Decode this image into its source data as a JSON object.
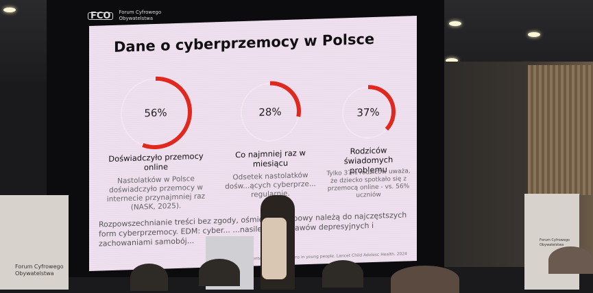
{
  "logo": {
    "name_line1": "Forum Cyfrowego",
    "name_line2": "Obywatelstwa",
    "mark": "FCO"
  },
  "slide": {
    "title": "Dane o cyberprzemocy w Polsce",
    "accent_color": "#e0281e",
    "stats": [
      {
        "value": "56%",
        "fraction": 0.56,
        "label": "Doświadczyło przemocy online",
        "body": "Nastolatków w Polsce doświadczyło przemocy w internecie przynajmniej raz (NASK, 2025)."
      },
      {
        "value": "28%",
        "fraction": 0.28,
        "label": "Co najmniej raz w miesiącu",
        "body": "Odsetek nastolatków dośw...ących cyberprze... regularnie."
      },
      {
        "value": "37%",
        "fraction": 0.37,
        "label": "Rodziców świadomych problemu",
        "body": "Tylko 37% rodziców uważa, że dziecko spotkało się z przemocą online - vs. 56% uczniów"
      }
    ],
    "paragraph": "Rozpowszechnianie treści bez zgody, ośmiesz... ...upowy należą do najczęstszych form cyberprzemocy. EDM: cyber... ...nasileniem objawów depresyjnych i zachowaniami samobój...",
    "citation": "...victimization and mental health conditions in young people. Lancet Child Adolesc Health. 2024"
  },
  "banner": {
    "line1": "Forum Cyfrowego",
    "line2": "Obywatelstwa"
  }
}
